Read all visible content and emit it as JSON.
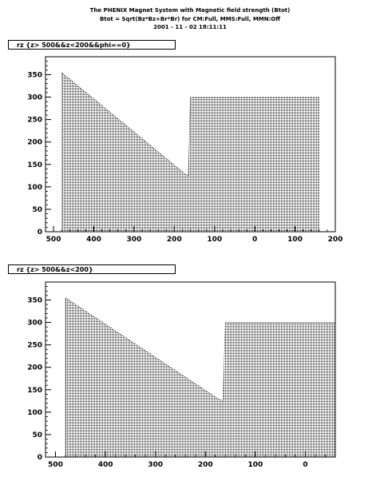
{
  "header": {
    "line1": "The PHENIX Magnet System with Magnetic field strength (Btot)",
    "line2": "Btot = Sqrt(Bz*Bz+Br*Br) for CM:Full, MMS:Full, MMN:Off",
    "line3": "2001 - 11 - 02 18:11:11"
  },
  "chart_data": [
    {
      "type": "area",
      "title": "rz {z> 500&&z<200&&phi==0}",
      "x_tick_labels": [
        "500",
        "400",
        "300",
        "200",
        "100",
        "0",
        "100",
        "200"
      ],
      "x_tick_values": [
        500,
        400,
        300,
        200,
        100,
        0,
        -100,
        -200
      ],
      "y_ticks": [
        0,
        50,
        100,
        150,
        200,
        250,
        300,
        350
      ],
      "ylim": [
        0,
        390
      ],
      "xlim": [
        520,
        -200
      ],
      "series": [
        {
          "x": [
            480,
            175,
            165,
            160,
            155,
            -160
          ],
          "y": [
            355,
            130,
            125,
            300,
            300,
            300
          ]
        }
      ]
    },
    {
      "type": "area",
      "title": "rz {z> 500&&z<200}",
      "x_tick_labels": [
        "500",
        "400",
        "300",
        "200",
        "100",
        "0"
      ],
      "x_tick_values": [
        500,
        400,
        300,
        200,
        100,
        0
      ],
      "y_ticks": [
        0,
        50,
        100,
        150,
        200,
        250,
        300,
        350
      ],
      "ylim": [
        0,
        390
      ],
      "xlim": [
        520,
        -60
      ],
      "series": [
        {
          "x": [
            480,
            175,
            165,
            160,
            155,
            -60
          ],
          "y": [
            355,
            130,
            125,
            300,
            300,
            300
          ]
        }
      ]
    }
  ]
}
